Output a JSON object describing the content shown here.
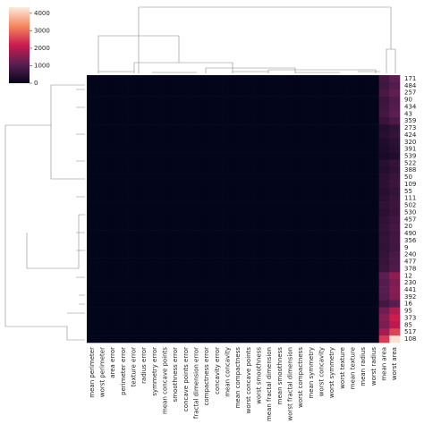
{
  "chart_data": {
    "type": "heatmap",
    "columns": [
      "mean perimeter",
      "worst perimeter",
      "area error",
      "perimeter error",
      "texture error",
      "radius error",
      "symmetry error",
      "mean concave points",
      "smoothness error",
      "concave points error",
      "fractal dimension error",
      "compactness error",
      "concavity error",
      "mean concavity",
      "mean compactness",
      "worst concave points",
      "worst smoothness",
      "mean fractal dimension",
      "mean smoothness",
      "worst fractal dimension",
      "worst compactness",
      "mean symmetry",
      "worst concavity",
      "worst symmetry",
      "worst texture",
      "mean texture",
      "mean radius",
      "worst radius",
      "mean area",
      "worst area"
    ],
    "rows": [
      "171",
      "484",
      "257",
      "90",
      "434",
      "43",
      "359",
      "273",
      "424",
      "320",
      "391",
      "539",
      "522",
      "388",
      "50",
      "109",
      "55",
      "111",
      "502",
      "530",
      "457",
      "20",
      "490",
      "356",
      "9",
      "240",
      "477",
      "378",
      "12",
      "230",
      "441",
      "392",
      "16",
      "95",
      "373",
      "85",
      "517",
      "108"
    ],
    "values": [
      [
        0,
        0,
        0,
        0,
        0,
        0,
        0,
        0,
        0,
        0,
        0,
        0,
        0,
        0,
        0,
        0,
        0,
        0,
        0,
        0,
        0,
        0,
        0,
        0,
        0,
        0,
        0,
        0,
        800,
        1100
      ],
      [
        0,
        0,
        0,
        0,
        0,
        0,
        0,
        0,
        0,
        0,
        0,
        0,
        0,
        0,
        0,
        0,
        0,
        0,
        0,
        0,
        0,
        0,
        0,
        0,
        0,
        0,
        0,
        0,
        750,
        1000
      ],
      [
        0,
        0,
        0,
        0,
        0,
        0,
        0,
        0,
        0,
        0,
        0,
        0,
        0,
        0,
        0,
        0,
        0,
        0,
        0,
        0,
        0,
        0,
        0,
        0,
        0,
        0,
        0,
        0,
        850,
        1150
      ],
      [
        0,
        0,
        0,
        0,
        0,
        0,
        0,
        0,
        0,
        0,
        0,
        0,
        0,
        0,
        0,
        0,
        0,
        0,
        0,
        0,
        0,
        0,
        0,
        0,
        0,
        0,
        0,
        0,
        700,
        950
      ],
      [
        0,
        0,
        0,
        0,
        0,
        0,
        0,
        0,
        0,
        0,
        0,
        0,
        0,
        0,
        0,
        0,
        0,
        0,
        0,
        0,
        0,
        0,
        0,
        0,
        0,
        0,
        0,
        0,
        750,
        1000
      ],
      [
        0,
        0,
        0,
        0,
        0,
        0,
        0,
        0,
        0,
        0,
        0,
        0,
        0,
        0,
        0,
        0,
        0,
        0,
        0,
        0,
        0,
        0,
        0,
        0,
        0,
        0,
        0,
        0,
        800,
        1100
      ],
      [
        0,
        0,
        0,
        0,
        0,
        0,
        0,
        0,
        0,
        0,
        0,
        0,
        0,
        0,
        0,
        0,
        0,
        0,
        0,
        0,
        0,
        0,
        0,
        0,
        0,
        0,
        0,
        0,
        650,
        900
      ],
      [
        0,
        0,
        0,
        0,
        0,
        0,
        0,
        0,
        0,
        0,
        0,
        0,
        0,
        0,
        0,
        0,
        0,
        0,
        0,
        0,
        0,
        0,
        0,
        0,
        0,
        0,
        0,
        0,
        400,
        550
      ],
      [
        0,
        0,
        0,
        0,
        0,
        0,
        0,
        0,
        0,
        0,
        0,
        0,
        0,
        0,
        0,
        0,
        0,
        0,
        0,
        0,
        0,
        0,
        0,
        0,
        0,
        0,
        0,
        0,
        450,
        600
      ],
      [
        0,
        0,
        0,
        0,
        0,
        0,
        0,
        0,
        0,
        0,
        0,
        0,
        0,
        0,
        0,
        0,
        0,
        0,
        0,
        0,
        0,
        0,
        0,
        0,
        0,
        0,
        0,
        0,
        350,
        500
      ],
      [
        0,
        0,
        0,
        0,
        0,
        0,
        0,
        0,
        0,
        0,
        0,
        0,
        0,
        0,
        0,
        0,
        0,
        0,
        0,
        0,
        0,
        0,
        0,
        0,
        0,
        0,
        0,
        0,
        300,
        450
      ],
      [
        0,
        0,
        0,
        0,
        0,
        0,
        0,
        0,
        0,
        0,
        0,
        0,
        0,
        0,
        0,
        0,
        0,
        0,
        0,
        0,
        0,
        0,
        0,
        0,
        0,
        0,
        0,
        0,
        250,
        350
      ],
      [
        0,
        0,
        0,
        0,
        0,
        0,
        0,
        0,
        0,
        0,
        0,
        0,
        0,
        0,
        0,
        0,
        0,
        0,
        0,
        0,
        0,
        0,
        0,
        0,
        0,
        0,
        0,
        0,
        450,
        600
      ],
      [
        0,
        0,
        0,
        0,
        0,
        0,
        0,
        0,
        0,
        0,
        0,
        0,
        0,
        0,
        0,
        0,
        0,
        0,
        0,
        0,
        0,
        0,
        0,
        0,
        0,
        0,
        0,
        0,
        400,
        550
      ],
      [
        0,
        0,
        0,
        0,
        0,
        0,
        0,
        0,
        0,
        0,
        0,
        0,
        0,
        0,
        0,
        0,
        0,
        0,
        0,
        0,
        0,
        0,
        0,
        0,
        0,
        0,
        0,
        0,
        500,
        650
      ],
      [
        0,
        0,
        0,
        0,
        0,
        0,
        0,
        0,
        0,
        0,
        0,
        0,
        0,
        0,
        0,
        0,
        0,
        0,
        0,
        0,
        0,
        0,
        0,
        0,
        0,
        0,
        0,
        0,
        500,
        700
      ],
      [
        0,
        0,
        0,
        0,
        0,
        0,
        0,
        0,
        0,
        0,
        0,
        0,
        0,
        0,
        0,
        0,
        0,
        0,
        0,
        0,
        0,
        0,
        0,
        0,
        0,
        0,
        0,
        0,
        450,
        600
      ],
      [
        0,
        0,
        0,
        0,
        0,
        0,
        0,
        0,
        0,
        0,
        0,
        0,
        0,
        0,
        0,
        0,
        0,
        0,
        0,
        0,
        0,
        0,
        0,
        0,
        0,
        0,
        0,
        0,
        500,
        650
      ],
      [
        0,
        0,
        0,
        0,
        0,
        0,
        0,
        0,
        0,
        0,
        0,
        0,
        0,
        0,
        0,
        0,
        0,
        0,
        0,
        0,
        0,
        0,
        0,
        0,
        0,
        0,
        0,
        0,
        550,
        700
      ],
      [
        0,
        0,
        0,
        0,
        0,
        0,
        0,
        0,
        0,
        0,
        0,
        0,
        0,
        0,
        0,
        0,
        0,
        0,
        0,
        0,
        0,
        0,
        0,
        0,
        0,
        0,
        0,
        0,
        500,
        650
      ],
      [
        0,
        0,
        0,
        0,
        0,
        0,
        0,
        0,
        0,
        0,
        0,
        0,
        0,
        0,
        0,
        0,
        0,
        0,
        0,
        0,
        0,
        0,
        0,
        0,
        0,
        0,
        0,
        0,
        550,
        750
      ],
      [
        0,
        0,
        0,
        0,
        0,
        0,
        0,
        0,
        0,
        0,
        0,
        0,
        0,
        0,
        0,
        0,
        0,
        0,
        0,
        0,
        0,
        0,
        0,
        0,
        0,
        0,
        0,
        0,
        600,
        800
      ],
      [
        0,
        0,
        0,
        0,
        0,
        0,
        0,
        0,
        0,
        0,
        0,
        0,
        0,
        0,
        0,
        0,
        0,
        0,
        0,
        0,
        0,
        0,
        0,
        0,
        0,
        0,
        0,
        0,
        550,
        750
      ],
      [
        0,
        0,
        0,
        0,
        0,
        0,
        0,
        0,
        0,
        0,
        0,
        0,
        0,
        0,
        0,
        0,
        0,
        0,
        0,
        0,
        0,
        0,
        0,
        0,
        0,
        0,
        0,
        0,
        600,
        800
      ],
      [
        0,
        0,
        0,
        0,
        0,
        0,
        0,
        0,
        0,
        0,
        0,
        0,
        0,
        0,
        0,
        0,
        0,
        0,
        0,
        0,
        0,
        0,
        0,
        0,
        0,
        0,
        0,
        0,
        550,
        750
      ],
      [
        0,
        0,
        0,
        0,
        0,
        0,
        0,
        0,
        0,
        0,
        0,
        0,
        0,
        0,
        0,
        0,
        0,
        0,
        0,
        0,
        0,
        0,
        0,
        0,
        0,
        0,
        0,
        0,
        600,
        850
      ],
      [
        0,
        0,
        0,
        0,
        0,
        0,
        0,
        0,
        0,
        0,
        0,
        0,
        0,
        0,
        0,
        0,
        0,
        0,
        0,
        0,
        0,
        0,
        0,
        0,
        0,
        0,
        0,
        0,
        650,
        900
      ],
      [
        0,
        0,
        0,
        0,
        0,
        0,
        0,
        0,
        0,
        0,
        0,
        0,
        0,
        0,
        0,
        0,
        0,
        0,
        0,
        0,
        0,
        0,
        0,
        0,
        0,
        0,
        0,
        0,
        700,
        950
      ],
      [
        0,
        0,
        0,
        0,
        0,
        0,
        0,
        0,
        0,
        0,
        0,
        0,
        0,
        0,
        0,
        0,
        0,
        0,
        0,
        0,
        0,
        0,
        0,
        0,
        0,
        0,
        0,
        0,
        1100,
        1600
      ],
      [
        0,
        0,
        0,
        0,
        0,
        0,
        0,
        0,
        0,
        0,
        0,
        0,
        0,
        0,
        0,
        0,
        0,
        0,
        0,
        0,
        0,
        0,
        0,
        0,
        0,
        0,
        0,
        0,
        1000,
        1400
      ],
      [
        0,
        0,
        0,
        0,
        0,
        0,
        0,
        0,
        0,
        0,
        0,
        0,
        0,
        0,
        0,
        0,
        0,
        0,
        0,
        0,
        0,
        0,
        0,
        0,
        0,
        0,
        0,
        0,
        1050,
        1500
      ],
      [
        0,
        0,
        0,
        0,
        0,
        0,
        0,
        0,
        0,
        0,
        0,
        0,
        0,
        0,
        0,
        0,
        0,
        0,
        0,
        0,
        0,
        0,
        0,
        0,
        0,
        0,
        0,
        0,
        1000,
        1450
      ],
      [
        0,
        0,
        0,
        0,
        0,
        0,
        0,
        0,
        0,
        0,
        0,
        0,
        0,
        0,
        0,
        0,
        0,
        0,
        0,
        0,
        0,
        0,
        0,
        0,
        0,
        0,
        0,
        0,
        800,
        1050
      ],
      [
        0,
        0,
        0,
        0,
        0,
        0,
        0,
        0,
        0,
        0,
        0,
        0,
        0,
        0,
        0,
        0,
        0,
        0,
        0,
        0,
        0,
        0,
        0,
        0,
        0,
        0,
        0,
        0,
        1300,
        1900
      ],
      [
        0,
        0,
        0,
        0,
        0,
        0,
        0,
        0,
        0,
        0,
        0,
        0,
        0,
        0,
        0,
        0,
        0,
        0,
        0,
        0,
        0,
        0,
        0,
        0,
        0,
        0,
        0,
        0,
        1500,
        2200
      ],
      [
        0,
        0,
        0,
        0,
        0,
        0,
        0,
        0,
        0,
        0,
        0,
        0,
        0,
        0,
        0,
        0,
        0,
        0,
        0,
        0,
        0,
        0,
        0,
        0,
        0,
        0,
        0,
        0,
        1400,
        2000
      ],
      [
        0,
        0,
        0,
        0,
        0,
        0,
        0,
        0,
        0,
        0,
        0,
        0,
        0,
        0,
        0,
        0,
        0,
        0,
        0,
        0,
        0,
        0,
        0,
        0,
        0,
        0,
        0,
        0,
        1800,
        2600
      ],
      [
        0,
        0,
        0,
        0,
        0,
        0,
        0,
        0,
        0,
        0,
        0,
        0,
        0,
        0,
        0,
        0,
        0,
        0,
        0,
        0,
        0,
        0,
        0,
        0,
        0,
        0,
        0,
        0,
        2500,
        4250
      ]
    ],
    "colorbar": {
      "ylim": [
        0,
        4350
      ],
      "yticks": [
        0,
        1000,
        2000,
        3000,
        4000
      ]
    }
  }
}
